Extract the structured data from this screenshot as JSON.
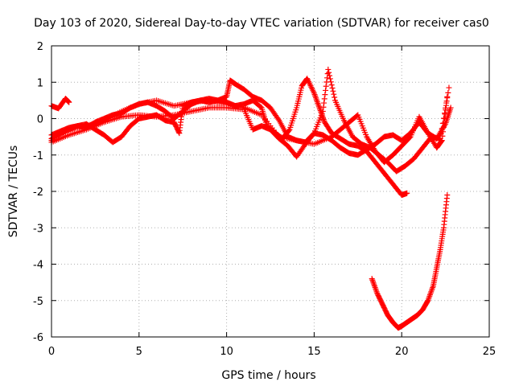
{
  "chart_data": {
    "type": "scatter",
    "title": "Day 103 of 2020, Sidereal Day-to-day VTEC variation (SDTVAR) for receiver cas0",
    "xlabel": "GPS time / hours",
    "ylabel": "SDTVAR / TECUs",
    "xlim": [
      0,
      25
    ],
    "ylim": [
      -6,
      2
    ],
    "xticks": [
      0,
      5,
      10,
      15,
      20,
      25
    ],
    "yticks": [
      -6,
      -5,
      -4,
      -3,
      -2,
      -1,
      0,
      1,
      2
    ],
    "grid": true,
    "marker": "+",
    "color": "#ff0000",
    "series": [
      {
        "x": [
          0.0,
          0.4,
          0.8,
          1.0
        ],
        "y": [
          0.35,
          0.28,
          0.55,
          0.45
        ]
      },
      {
        "x": [
          0.0,
          0.5,
          1.0,
          1.5,
          2.0,
          2.5,
          3.0,
          3.5,
          4.0,
          4.5,
          5.0,
          5.5,
          6.0,
          6.5,
          7.0,
          7.5,
          8.0,
          8.5,
          9.0,
          9.5,
          10.0,
          10.5,
          11.0,
          11.5,
          12.0,
          12.3,
          12.8,
          13.2,
          13.6,
          14.0,
          14.3,
          14.6,
          15.0,
          15.3,
          15.6,
          16.0,
          16.5,
          17.0,
          17.5,
          18.0,
          18.5,
          19.0,
          19.5,
          20.0,
          20.3
        ],
        "y": [
          -0.55,
          -0.4,
          -0.3,
          -0.2,
          -0.25,
          -0.1,
          0.0,
          0.1,
          0.15,
          0.3,
          0.4,
          0.45,
          0.35,
          0.2,
          0.0,
          0.2,
          0.4,
          0.5,
          0.55,
          0.5,
          0.45,
          0.35,
          0.4,
          0.5,
          0.3,
          -0.2,
          -0.4,
          -0.55,
          -0.3,
          0.3,
          0.9,
          1.1,
          0.7,
          0.3,
          -0.1,
          -0.4,
          -0.55,
          -0.7,
          -0.75,
          -0.9,
          -1.2,
          -1.5,
          -1.8,
          -2.1,
          -2.05
        ]
      },
      {
        "x": [
          0.0,
          0.5,
          1.0,
          1.5,
          2.0,
          2.5,
          3.0,
          3.5,
          4.0,
          4.5,
          5.0,
          5.5,
          6.0,
          6.5,
          7.0,
          7.3,
          7.5,
          8.0,
          8.5,
          9.0,
          9.5,
          10.0,
          10.2,
          10.5,
          11.0,
          11.5,
          12.0,
          12.5,
          13.0,
          13.5,
          14.0,
          14.5,
          15.0,
          15.5,
          15.8,
          16.2,
          16.7,
          17.2,
          17.7,
          18.2,
          18.7,
          19.2,
          19.7,
          20.2,
          20.7,
          21.2,
          21.7,
          22.2,
          22.7
        ],
        "y": [
          -0.45,
          -0.35,
          -0.25,
          -0.2,
          -0.15,
          -0.3,
          -0.45,
          -0.65,
          -0.5,
          -0.2,
          0.0,
          0.05,
          0.1,
          -0.05,
          -0.1,
          -0.4,
          0.35,
          0.45,
          0.5,
          0.45,
          0.5,
          0.6,
          1.05,
          0.95,
          0.8,
          0.6,
          0.5,
          0.3,
          -0.05,
          -0.5,
          -0.6,
          -0.65,
          -0.4,
          0.2,
          1.35,
          0.5,
          -0.05,
          -0.5,
          -0.7,
          -0.8,
          -1.0,
          -1.2,
          -1.45,
          -1.3,
          -1.1,
          -0.8,
          -0.5,
          -0.55,
          0.85
        ]
      },
      {
        "x": [
          0.0,
          1.0,
          2.0,
          3.0,
          4.0,
          5.0,
          6.0,
          7.0,
          8.0,
          9.0,
          10.0,
          11.0,
          11.5,
          12.0,
          12.5,
          13.0,
          13.5,
          14.0,
          14.5,
          15.0,
          15.5,
          16.0,
          16.5,
          17.0,
          17.5,
          18.0,
          18.5,
          19.0,
          19.5,
          20.0,
          20.5,
          21.0,
          21.5,
          22.0,
          22.5,
          22.8
        ],
        "y": [
          -0.65,
          -0.45,
          -0.3,
          -0.1,
          0.05,
          0.1,
          0.05,
          0.1,
          0.2,
          0.3,
          0.3,
          0.25,
          -0.3,
          -0.2,
          -0.3,
          -0.55,
          -0.75,
          -1.05,
          -0.7,
          -0.4,
          -0.45,
          -0.6,
          -0.8,
          -0.95,
          -1.0,
          -0.85,
          -0.7,
          -0.5,
          -0.45,
          -0.6,
          -0.4,
          -0.1,
          -0.4,
          -0.55,
          -0.15,
          0.3
        ]
      },
      {
        "x": [
          0.0,
          1.0,
          2.0,
          3.0,
          4.0,
          5.0,
          6.0,
          7.0,
          8.0,
          9.0,
          10.0,
          11.0,
          12.0,
          13.0,
          14.0,
          15.0,
          16.0,
          16.5,
          17.0,
          17.5,
          18.0,
          18.5,
          19.0,
          19.5,
          20.0,
          20.5,
          21.0,
          21.5,
          22.0,
          22.3,
          22.6
        ],
        "y": [
          -0.6,
          -0.3,
          -0.2,
          -0.05,
          0.2,
          0.4,
          0.5,
          0.35,
          0.45,
          0.5,
          0.4,
          0.3,
          0.1,
          -0.5,
          -0.6,
          -0.7,
          -0.5,
          -0.3,
          -0.1,
          0.1,
          -0.5,
          -0.9,
          -1.2,
          -1.0,
          -0.75,
          -0.5,
          0.05,
          -0.4,
          -0.8,
          -0.6,
          0.6
        ]
      },
      {
        "x": [
          18.3,
          18.6,
          18.9,
          19.2,
          19.5,
          19.8,
          20.0,
          20.3,
          20.6,
          20.9,
          21.2,
          21.5,
          21.8,
          22.0,
          22.2,
          22.4,
          22.6
        ],
        "y": [
          -4.4,
          -4.8,
          -5.1,
          -5.4,
          -5.6,
          -5.75,
          -5.7,
          -5.6,
          -5.5,
          -5.4,
          -5.25,
          -5.0,
          -4.6,
          -4.1,
          -3.6,
          -3.0,
          -2.1
        ]
      }
    ]
  }
}
